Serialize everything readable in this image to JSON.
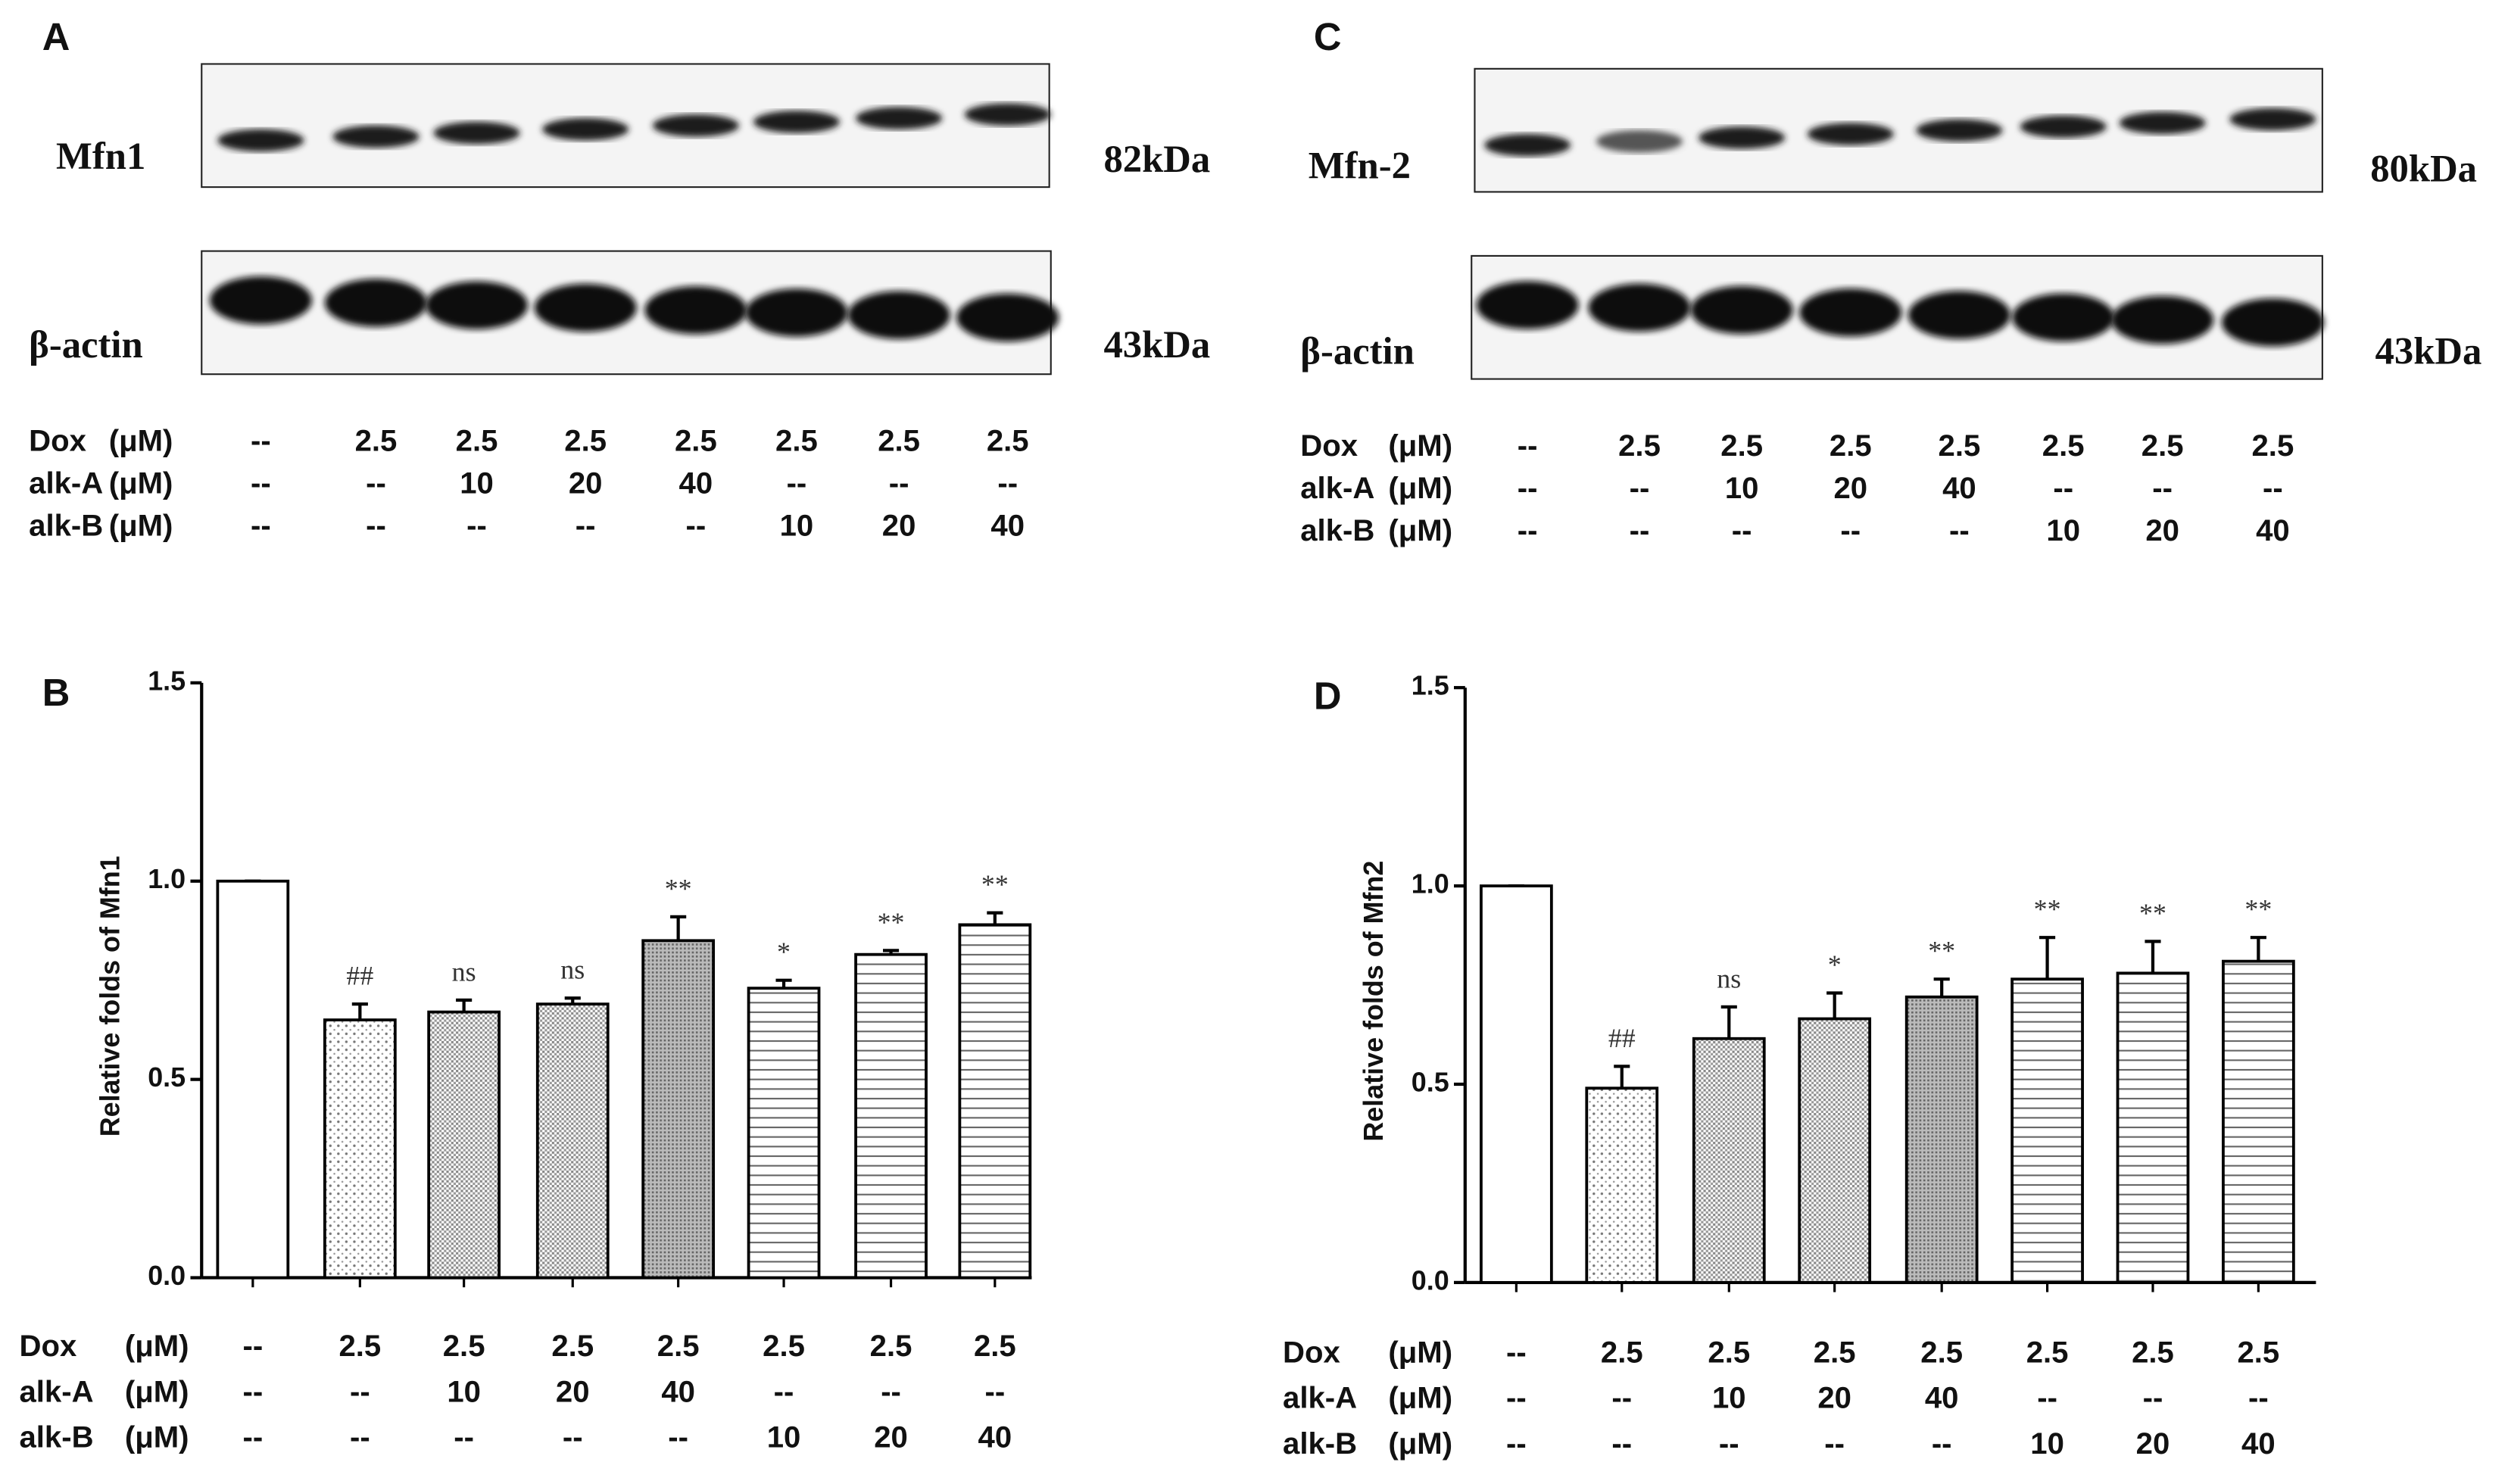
{
  "blots": [
    {
      "label": "A",
      "bands": [
        {
          "name": "Mfn1",
          "size": "82kDa"
        },
        {
          "name": "β-actin",
          "size": "43kDa"
        }
      ],
      "treatments": [
        {
          "name": "Dox",
          "unit": "(μM)",
          "levels": [
            "--",
            "2.5",
            "2.5",
            "2.5",
            "2.5",
            "2.5",
            "2.5",
            "2.5"
          ]
        },
        {
          "name": "alk-A",
          "unit": "(μM)",
          "levels": [
            "--",
            "--",
            "10",
            "20",
            "40",
            "--",
            "--",
            "--"
          ]
        },
        {
          "name": "alk-B",
          "unit": "(μM)",
          "levels": [
            "--",
            "--",
            "--",
            "--",
            "--",
            "10",
            "20",
            "40"
          ]
        }
      ]
    },
    {
      "label": "C",
      "bands": [
        {
          "name": "Mfn-2",
          "size": "80kDa"
        },
        {
          "name": "β-actin",
          "size": "43kDa"
        }
      ],
      "treatments": [
        {
          "name": "Dox",
          "unit": "(μM)",
          "levels": [
            "--",
            "2.5",
            "2.5",
            "2.5",
            "2.5",
            "2.5",
            "2.5",
            "2.5"
          ]
        },
        {
          "name": "alk-A",
          "unit": "(μM)",
          "levels": [
            "--",
            "--",
            "10",
            "20",
            "40",
            "--",
            "--",
            "--"
          ]
        },
        {
          "name": "alk-B",
          "unit": "(μM)",
          "levels": [
            "--",
            "--",
            "--",
            "--",
            "--",
            "10",
            "20",
            "40"
          ]
        }
      ]
    }
  ],
  "chart_data": [
    {
      "type": "bar",
      "label": "B",
      "y_label": "Relative folds of Mfn1",
      "values": [
        1.0,
        0.65,
        0.67,
        0.69,
        0.85,
        0.73,
        0.815,
        0.89
      ],
      "errors": [
        0,
        0.04,
        0.03,
        0.015,
        0.06,
        0.02,
        0.01,
        0.03
      ],
      "annotations": [
        null,
        "##",
        "ns",
        "ns",
        "**",
        "*",
        "**",
        "**"
      ],
      "ylim": [
        0,
        1.5
      ],
      "yticks": [
        {
          "value": 0,
          "label": "0.0"
        },
        0.5,
        {
          "value": 1,
          "label": "1.0"
        },
        1.5
      ],
      "treatments": [
        {
          "name": "Dox",
          "unit": "(μM)",
          "levels": [
            "--",
            "2.5",
            "2.5",
            "2.5",
            "2.5",
            "2.5",
            "2.5",
            "2.5"
          ]
        },
        {
          "name": "alk-A",
          "unit": "(μM)",
          "levels": [
            "--",
            "--",
            "10",
            "20",
            "40",
            "--",
            "--",
            "--"
          ]
        },
        {
          "name": "alk-B",
          "unit": "(μM)",
          "levels": [
            "--",
            "--",
            "--",
            "--",
            "--",
            "10",
            "20",
            "40"
          ]
        }
      ]
    },
    {
      "type": "bar",
      "label": "D",
      "y_label": "Relative folds of Mfn2",
      "values": [
        1.0,
        0.49,
        0.615,
        0.665,
        0.72,
        0.765,
        0.78,
        0.81
      ],
      "errors": [
        0,
        0.055,
        0.08,
        0.065,
        0.045,
        0.105,
        0.08,
        0.06
      ],
      "annotations": [
        null,
        "##",
        "ns",
        "*",
        "**",
        "**",
        "**",
        "**"
      ],
      "ylim": [
        0,
        1.5
      ],
      "yticks": [
        {
          "value": 0,
          "label": "0.0"
        },
        0.5,
        {
          "value": 1,
          "label": "1.0"
        },
        1.5
      ],
      "treatments": [
        {
          "name": "Dox",
          "unit": "(μM)",
          "levels": [
            "--",
            "2.5",
            "2.5",
            "2.5",
            "2.5",
            "2.5",
            "2.5",
            "2.5"
          ]
        },
        {
          "name": "alk-A",
          "unit": "(μM)",
          "levels": [
            "--",
            "--",
            "10",
            "20",
            "40",
            "--",
            "--",
            "--"
          ]
        },
        {
          "name": "alk-B",
          "unit": "(μM)",
          "levels": [
            "--",
            "--",
            "--",
            "--",
            "--",
            "10",
            "20",
            "40"
          ]
        }
      ]
    }
  ]
}
